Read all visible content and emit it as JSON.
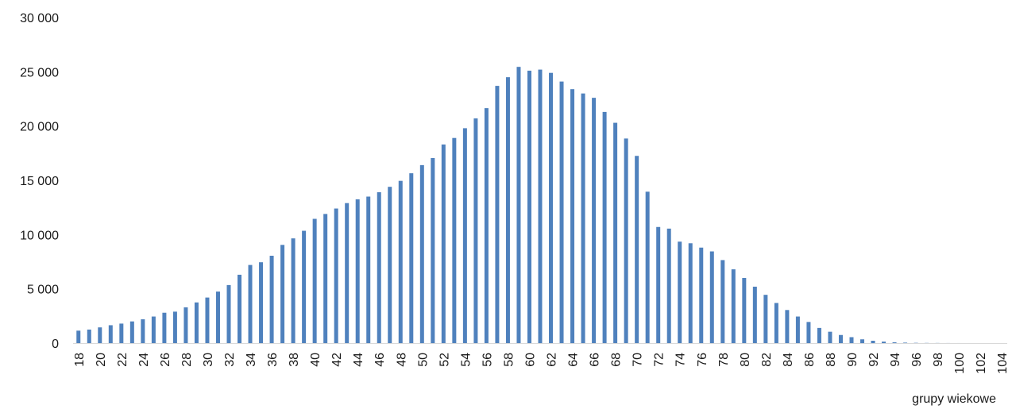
{
  "chart_data": {
    "type": "bar",
    "title": "",
    "xlabel": "grupy wiekowe",
    "ylabel": "",
    "ylim": [
      0,
      30000
    ],
    "yticks": [
      0,
      5000,
      10000,
      15000,
      20000,
      25000,
      30000
    ],
    "ytick_labels": [
      "0",
      "5 000",
      "10 000",
      "15 000",
      "20 000",
      "25 000",
      "30 000"
    ],
    "grid": false,
    "legend": "none",
    "bar_color": "#4F81BD",
    "categories": [
      "18",
      "19",
      "20",
      "21",
      "22",
      "23",
      "24",
      "25",
      "26",
      "27",
      "28",
      "29",
      "30",
      "31",
      "32",
      "33",
      "34",
      "35",
      "36",
      "37",
      "38",
      "39",
      "40",
      "41",
      "42",
      "43",
      "44",
      "45",
      "46",
      "47",
      "48",
      "49",
      "50",
      "51",
      "52",
      "53",
      "54",
      "55",
      "56",
      "57",
      "58",
      "59",
      "60",
      "61",
      "62",
      "63",
      "64",
      "65",
      "66",
      "67",
      "68",
      "69",
      "70",
      "71",
      "72",
      "73",
      "74",
      "75",
      "76",
      "77",
      "78",
      "79",
      "80",
      "81",
      "82",
      "83",
      "84",
      "85",
      "86",
      "87",
      "88",
      "89",
      "90",
      "91",
      "92",
      "93",
      "94",
      "95",
      "96",
      "97",
      "98",
      "99",
      "100",
      "101",
      "102",
      "103",
      "104"
    ],
    "x_tick_labels": [
      "18",
      "20",
      "22",
      "24",
      "26",
      "28",
      "30",
      "32",
      "34",
      "36",
      "38",
      "40",
      "42",
      "44",
      "46",
      "48",
      "50",
      "52",
      "54",
      "56",
      "58",
      "60",
      "62",
      "64",
      "66",
      "68",
      "70",
      "72",
      "74",
      "76",
      "78",
      "80",
      "82",
      "84",
      "86",
      "88",
      "90",
      "92",
      "94",
      "96",
      "98",
      "100",
      "102",
      "104"
    ],
    "values": [
      1150,
      1250,
      1450,
      1650,
      1800,
      2000,
      2200,
      2450,
      2800,
      2900,
      3300,
      3750,
      4200,
      4750,
      5350,
      6300,
      7200,
      7450,
      8050,
      9050,
      9650,
      10350,
      11450,
      11900,
      12400,
      12900,
      13250,
      13500,
      13900,
      14400,
      14950,
      15650,
      16400,
      17050,
      18300,
      18900,
      19800,
      20700,
      21650,
      23700,
      24500,
      25450,
      25100,
      25200,
      24900,
      24100,
      23400,
      23000,
      22600,
      21300,
      20300,
      18850,
      17250,
      13950,
      10700,
      10550,
      9350,
      9200,
      8800,
      8450,
      7650,
      6800,
      6000,
      5200,
      4450,
      3700,
      3050,
      2450,
      1950,
      1400,
      1050,
      750,
      550,
      350,
      220,
      140,
      80,
      45,
      25,
      15,
      10,
      5,
      3,
      2,
      1,
      1,
      1
    ]
  }
}
